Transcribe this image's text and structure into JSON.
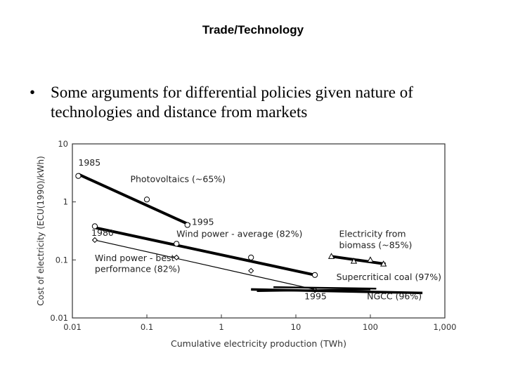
{
  "slide": {
    "title": "Trade/Technology",
    "bullet": "Some arguments for differential policies given nature of technologies and distance from markets"
  },
  "chart_data": {
    "type": "line",
    "xlabel": "Cumulative electricity production (TWh)",
    "ylabel": "Cost of electricity (ECU(1990)/kWh)",
    "x_scale": "log",
    "y_scale": "log",
    "xlim": [
      0.01,
      1000
    ],
    "ylim": [
      0.01,
      10
    ],
    "x_ticks": [
      {
        "v": 0.01,
        "label": "0.01"
      },
      {
        "v": 0.1,
        "label": "0.1"
      },
      {
        "v": 1,
        "label": "1"
      },
      {
        "v": 10,
        "label": "10"
      },
      {
        "v": 100,
        "label": "100"
      },
      {
        "v": 1000,
        "label": "1,000"
      }
    ],
    "y_ticks": [
      {
        "v": 10,
        "label": "10"
      },
      {
        "v": 1,
        "label": "1"
      },
      {
        "v": 0.1,
        "label": "0.1"
      },
      {
        "v": 0.01,
        "label": "0.01"
      }
    ],
    "grid": false,
    "series": [
      {
        "name": "Photovoltaics (~65%)",
        "marker": "circle",
        "line": {
          "x": [
            0.012,
            0.38
          ],
          "y": [
            3.0,
            0.4
          ]
        },
        "points": [
          {
            "x": 0.012,
            "y": 2.8
          },
          {
            "x": 0.1,
            "y": 1.1
          },
          {
            "x": 0.35,
            "y": 0.4
          }
        ]
      },
      {
        "name": "Wind power - average (82%)",
        "marker": "circle",
        "line": {
          "x": [
            0.02,
            18
          ],
          "y": [
            0.36,
            0.055
          ]
        },
        "points": [
          {
            "x": 0.02,
            "y": 0.38
          },
          {
            "x": 0.25,
            "y": 0.19
          },
          {
            "x": 2.5,
            "y": 0.11
          },
          {
            "x": 18,
            "y": 0.055
          }
        ]
      },
      {
        "name": "Wind power - best performance (82%)",
        "marker": "diamond",
        "line": {
          "x": [
            0.02,
            20
          ],
          "y": [
            0.22,
            0.03
          ]
        },
        "points": [
          {
            "x": 0.02,
            "y": 0.22
          },
          {
            "x": 0.25,
            "y": 0.11
          },
          {
            "x": 2.5,
            "y": 0.065
          },
          {
            "x": 18,
            "y": 0.03
          }
        ]
      },
      {
        "name": "Electricity from biomass (~85%)",
        "marker": "triangle",
        "line": {
          "x": [
            30,
            160
          ],
          "y": [
            0.115,
            0.085
          ]
        },
        "points": [
          {
            "x": 30,
            "y": 0.115
          },
          {
            "x": 60,
            "y": 0.095
          },
          {
            "x": 100,
            "y": 0.1
          },
          {
            "x": 150,
            "y": 0.085
          }
        ]
      },
      {
        "name": "Supercritical coal (97%)",
        "marker": "none",
        "line": {
          "x": [
            5,
            120
          ],
          "y": [
            0.034,
            0.032
          ]
        },
        "points": []
      },
      {
        "name": "NGCC (96%)",
        "marker": "none",
        "line": {
          "x": [
            2.5,
            500
          ],
          "y": [
            0.031,
            0.027
          ]
        },
        "points": []
      },
      {
        "name": "",
        "marker": "none",
        "line": {
          "x": [
            3,
            100
          ],
          "y": [
            0.029,
            0.031
          ]
        },
        "points": []
      }
    ],
    "annotations": [
      {
        "text": "1985",
        "x": 0.012,
        "y": 4.2
      },
      {
        "text": "Photovoltaics (~65%)",
        "x": 0.06,
        "y": 2.2
      },
      {
        "text": "1995",
        "x": 0.4,
        "y": 0.4
      },
      {
        "text": "1980",
        "x": 0.018,
        "y": 0.26
      },
      {
        "text": "Wind power - average (82%)",
        "x": 0.25,
        "y": 0.25
      },
      {
        "text": "Electricity from",
        "x": 38,
        "y": 0.25
      },
      {
        "text": "biomass (~85%)",
        "x": 38,
        "y": 0.16
      },
      {
        "text": "Wind power - best",
        "x": 0.02,
        "y": 0.095
      },
      {
        "text": "performance (82%)",
        "x": 0.02,
        "y": 0.062
      },
      {
        "text": "Supercritical coal (97%)",
        "x": 35,
        "y": 0.045
      },
      {
        "text": "1995",
        "x": 13,
        "y": 0.021
      },
      {
        "text": "NGCC (96%)",
        "x": 90,
        "y": 0.021
      }
    ]
  }
}
